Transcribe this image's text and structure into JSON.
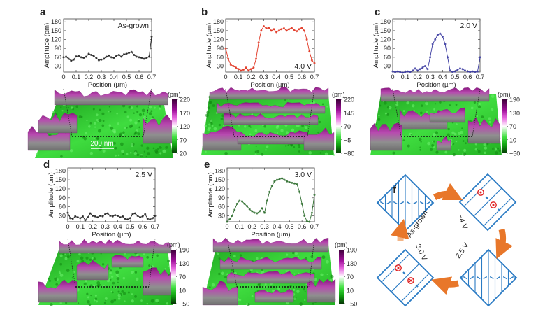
{
  "figure": {
    "panel_f": {
      "letter": "f",
      "states": [
        "As-grown",
        "−4 V",
        "2.5 V",
        "3.0 V"
      ]
    },
    "scale_bar": "200 nm",
    "colors": {
      "arrow": "#e8772a",
      "arrow_light": "#f3b587",
      "diamond": "#2a7bc4",
      "dot": "#e02020",
      "floor_green": "#2ecc2e",
      "ridge_purple": "#9c1e96"
    }
  },
  "chart_data": [
    {
      "panel": "a",
      "type": "scatter",
      "annotation": "As-grown",
      "color": "#222222",
      "xlabel": "Position (µm)",
      "ylabel": "Amplitude (pm)",
      "xlim": [
        0,
        0.7
      ],
      "ylim": [
        10,
        190
      ],
      "xticks": [
        "0",
        "0.1",
        "0.2",
        "0.3",
        "0.4",
        "0.5",
        "0.6",
        "0.7"
      ],
      "yticks": [
        "30",
        "60",
        "90",
        "120",
        "150",
        "180"
      ],
      "x_step": 0.02,
      "values": [
        60,
        62,
        55,
        48,
        52,
        63,
        65,
        60,
        58,
        62,
        72,
        68,
        64,
        58,
        50,
        52,
        55,
        62,
        66,
        60,
        58,
        65,
        68,
        62,
        70,
        72,
        75,
        78,
        68,
        62,
        60,
        58,
        55,
        58,
        62,
        130
      ],
      "colorbar": {
        "unit": "(pm)",
        "ticks": [
          "220",
          "170",
          "120",
          "70",
          "20"
        ]
      }
    },
    {
      "panel": "b",
      "type": "scatter",
      "annotation": "−4.0 V",
      "color": "#e0321e",
      "xlabel": "Position (µm)",
      "ylabel": "Amplitude (pm)",
      "xlim": [
        0,
        0.7
      ],
      "ylim": [
        10,
        190
      ],
      "xticks": [
        "0",
        "0.1",
        "0.2",
        "0.3",
        "0.4",
        "0.5",
        "0.6",
        "0.7"
      ],
      "yticks": [
        "30",
        "60",
        "90",
        "120",
        "150",
        "180"
      ],
      "x_step": 0.02,
      "values": [
        90,
        55,
        35,
        30,
        25,
        20,
        15,
        18,
        25,
        15,
        20,
        25,
        55,
        110,
        150,
        165,
        158,
        160,
        150,
        155,
        145,
        150,
        155,
        158,
        150,
        155,
        160,
        152,
        148,
        155,
        160,
        150,
        120,
        80,
        50,
        40
      ],
      "colorbar": {
        "unit": "(pm)",
        "ticks": [
          "220",
          "145",
          "70",
          "−5",
          "−80"
        ]
      }
    },
    {
      "panel": "c",
      "type": "scatter",
      "annotation": "2.0 V",
      "color": "#3a3aa0",
      "xlabel": "Position (µm)",
      "ylabel": "Amplitude (pm)",
      "xlim": [
        0,
        0.7
      ],
      "ylim": [
        10,
        190
      ],
      "xticks": [
        "0",
        "0.1",
        "0.2",
        "0.3",
        "0.4",
        "0.5",
        "0.6",
        "0.7"
      ],
      "yticks": [
        "30",
        "60",
        "90",
        "120",
        "150",
        "180"
      ],
      "x_step": 0.02,
      "values": [
        12,
        10,
        12,
        10,
        8,
        10,
        12,
        10,
        15,
        22,
        15,
        20,
        25,
        30,
        20,
        60,
        105,
        120,
        135,
        140,
        130,
        105,
        60,
        15,
        10,
        12,
        18,
        22,
        20,
        15,
        12,
        10,
        12,
        10,
        12,
        60
      ],
      "colorbar": {
        "unit": "(pm)",
        "ticks": [
          "190",
          "130",
          "70",
          "10",
          "−50"
        ]
      }
    },
    {
      "panel": "d",
      "type": "scatter",
      "annotation": "2.5 V",
      "color": "#222222",
      "xlabel": "Position (µm)",
      "ylabel": "Amplitude (pm)",
      "xlim": [
        0,
        0.7
      ],
      "ylim": [
        10,
        190
      ],
      "xticks": [
        "0",
        "0.1",
        "0.2",
        "0.3",
        "0.4",
        "0.5",
        "0.6",
        "0.7"
      ],
      "yticks": [
        "30",
        "60",
        "90",
        "120",
        "150",
        "180"
      ],
      "x_step": 0.02,
      "values": [
        40,
        22,
        20,
        28,
        25,
        22,
        28,
        15,
        25,
        38,
        30,
        28,
        25,
        30,
        28,
        35,
        38,
        30,
        28,
        32,
        30,
        25,
        28,
        20,
        18,
        22,
        35,
        38,
        30,
        25,
        28,
        35,
        20,
        18,
        22,
        30
      ],
      "colorbar": {
        "unit": "(pm)",
        "ticks": [
          "190",
          "130",
          "70",
          "10",
          "−50"
        ]
      }
    },
    {
      "panel": "e",
      "type": "scatter",
      "annotation": "3.0 V",
      "color": "#2e6e2e",
      "xlabel": "Position (µm)",
      "ylabel": "Amplitude (pm)",
      "xlim": [
        0,
        0.7
      ],
      "ylim": [
        10,
        190
      ],
      "xticks": [
        "0",
        "0.1",
        "0.2",
        "0.3",
        "0.4",
        "0.5",
        "0.6",
        "0.7"
      ],
      "yticks": [
        "30",
        "60",
        "90",
        "120",
        "150",
        "180"
      ],
      "x_step": 0.02,
      "values": [
        10,
        18,
        30,
        50,
        70,
        80,
        78,
        70,
        62,
        52,
        45,
        40,
        38,
        45,
        55,
        40,
        80,
        110,
        130,
        145,
        150,
        152,
        155,
        150,
        145,
        142,
        140,
        138,
        135,
        110,
        70,
        30,
        12,
        10,
        40,
        100
      ],
      "colorbar": {
        "unit": "(pm)",
        "ticks": [
          "190",
          "130",
          "70",
          "10",
          "−50"
        ]
      }
    }
  ]
}
